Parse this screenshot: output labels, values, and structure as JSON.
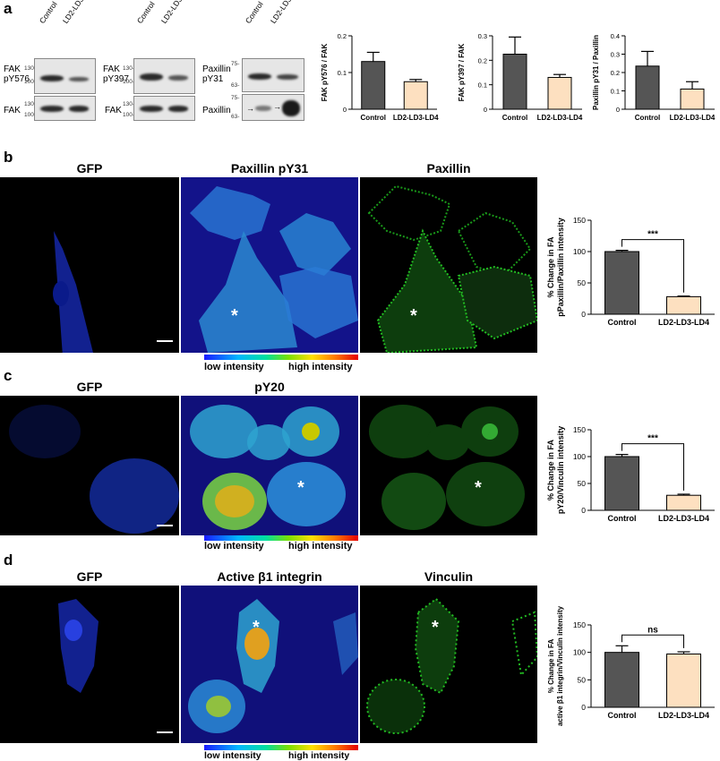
{
  "panel_a": {
    "letter": "a",
    "blots": [
      {
        "col_labels": [
          "Control",
          "LD2-LD3-LD4"
        ],
        "row_labels": [
          "FAK\npY576",
          "FAK"
        ],
        "mw": [
          [
            "130-",
            "100-"
          ],
          [
            "130-",
            "100-"
          ]
        ]
      },
      {
        "col_labels": [
          "Control",
          "LD2-LD3-LD4"
        ],
        "row_labels": [
          "FAK\npY397",
          "FAK"
        ],
        "mw": [
          [
            "130-",
            "100-"
          ],
          [
            "130-",
            "100-"
          ]
        ]
      },
      {
        "col_labels": [
          "Control",
          "LD2-LD3-LD4"
        ],
        "row_labels": [
          "Paxillin\npY31",
          "Paxillin"
        ],
        "mw": [
          [
            "75-",
            "63-"
          ],
          [
            "75-",
            "63-"
          ]
        ]
      }
    ]
  },
  "panel_b": {
    "letter": "b",
    "titles": [
      "GFP",
      "Paxillin pY31",
      "Paxillin"
    ],
    "colorbar": {
      "low": "low intensity",
      "high": "high intensity"
    }
  },
  "panel_c": {
    "letter": "c",
    "titles": [
      "GFP",
      "pY20"
    ],
    "colorbar": {
      "low": "low intensity",
      "high": "high intensity"
    }
  },
  "panel_d": {
    "letter": "d",
    "titles": [
      "GFP",
      "Active β1 integrin",
      "Vinculin"
    ],
    "colorbar": {
      "low": "low intensity",
      "high": "high intensity"
    }
  },
  "colors": {
    "control": "#555555",
    "treated": "#fde0c0",
    "gfp": "#1a3cff",
    "green": "#22cc22"
  },
  "chart_data": [
    {
      "id": "a1",
      "type": "bar",
      "categories": [
        "Control",
        "LD2-LD3-LD4"
      ],
      "values": [
        0.13,
        0.075
      ],
      "errors": [
        0.025,
        0.006
      ],
      "ylabel": "FAK pY576 / FAK",
      "ylim": [
        0,
        0.2
      ],
      "yticks": [
        0,
        0.1,
        0.2
      ],
      "ytick_labels": [
        "0",
        "0.1",
        "0.2"
      ]
    },
    {
      "id": "a2",
      "type": "bar",
      "categories": [
        "Control",
        "LD2-LD3-LD4"
      ],
      "values": [
        0.225,
        0.13
      ],
      "errors": [
        0.07,
        0.012
      ],
      "ylabel": "FAK pY397 / FAK",
      "ylim": [
        0,
        0.3
      ],
      "yticks": [
        0,
        0.1,
        0.2,
        0.3
      ],
      "ytick_labels": [
        "0",
        "0.1",
        "0.2",
        "0.3"
      ]
    },
    {
      "id": "a3",
      "type": "bar",
      "categories": [
        "Control",
        "LD2-LD3-LD4"
      ],
      "values": [
        0.235,
        0.11
      ],
      "errors": [
        0.08,
        0.04
      ],
      "ylabel": "Paxillin pY31 / Paxillin",
      "ylim": [
        0,
        0.4
      ],
      "yticks": [
        0,
        0.1,
        0.2,
        0.3,
        0.4
      ],
      "ytick_labels": [
        "0",
        "0.1",
        "0.2",
        "0.3",
        "0.4"
      ]
    },
    {
      "id": "b",
      "type": "bar",
      "categories": [
        "Control",
        "LD2-LD3-LD4"
      ],
      "values": [
        100,
        28
      ],
      "errors": [
        2,
        1
      ],
      "ylabel": "% Change in FA\npPaxillin/Paxillin intensity",
      "ylim": [
        0,
        150
      ],
      "yticks": [
        0,
        50,
        100,
        150
      ],
      "ytick_labels": [
        "0",
        "50",
        "100",
        "150"
      ],
      "significance": "***"
    },
    {
      "id": "c",
      "type": "bar",
      "categories": [
        "Control",
        "LD2-LD3-LD4"
      ],
      "values": [
        100,
        28
      ],
      "errors": [
        4,
        2
      ],
      "ylabel": "% Change in FA\npY20/Vinculin intensity",
      "ylim": [
        0,
        150
      ],
      "yticks": [
        0,
        50,
        100,
        150
      ],
      "ytick_labels": [
        "0",
        "50",
        "100",
        "150"
      ],
      "significance": "***"
    },
    {
      "id": "d",
      "type": "bar",
      "categories": [
        "Control",
        "LD2-LD3-LD4"
      ],
      "values": [
        100,
        97
      ],
      "errors": [
        12,
        4
      ],
      "ylabel": "% Change in FA\nactive β1 integrin/Vinculin intensity",
      "ylim": [
        0,
        150
      ],
      "yticks": [
        0,
        50,
        100,
        150
      ],
      "ytick_labels": [
        "0",
        "50",
        "100",
        "150"
      ],
      "significance": "ns"
    }
  ]
}
